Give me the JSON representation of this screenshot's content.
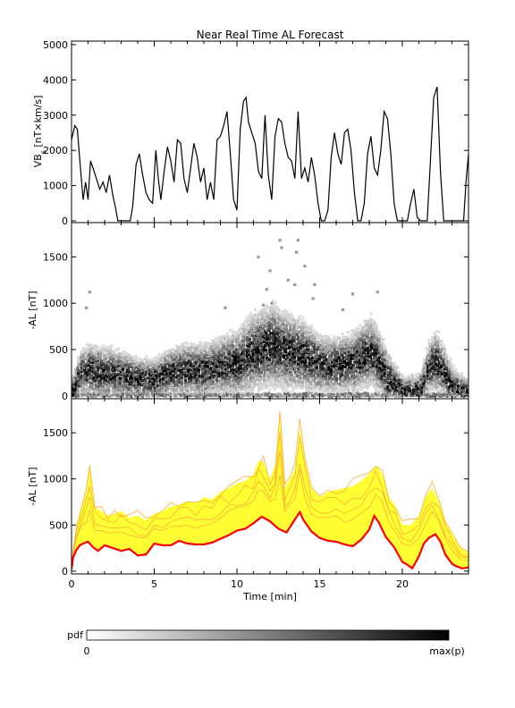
{
  "title": "Near Real Time AL Forecast",
  "x_axis": {
    "label": "Time [min]",
    "ticks": [
      0,
      5,
      10,
      15,
      20
    ],
    "range": [
      0,
      24
    ]
  },
  "colorbar": {
    "label": "pdf",
    "min_label": "0",
    "max_label": "max(p)"
  },
  "colors": {
    "vbs_line": "#000000",
    "forecast_median": "#ff0000",
    "forecast_band_fill": "#ffff33",
    "forecast_band_edge": "#ffaa33"
  },
  "chart_data": [
    {
      "type": "line",
      "panel": "top",
      "ylabel_main": "VB",
      "ylabel_sub": "s",
      "ylabel_unit": " [nT×km/s]",
      "ylim": [
        -50,
        5100
      ],
      "yticks": [
        0,
        1000,
        2000,
        3000,
        4000,
        5000
      ],
      "xlim": [
        0,
        24
      ],
      "series": [
        {
          "x": [
            0,
            0.2,
            0.35,
            0.5,
            0.7,
            0.85,
            1.0,
            1.15,
            1.3,
            1.5,
            1.7,
            1.9,
            2.1,
            2.3,
            2.5,
            2.65,
            2.8,
            3.0,
            3.2,
            3.4,
            3.55,
            3.7,
            3.9,
            4.1,
            4.3,
            4.5,
            4.7,
            4.9,
            5.1,
            5.25,
            5.4,
            5.6,
            5.8,
            6.0,
            6.2,
            6.4,
            6.6,
            6.8,
            7.0,
            7.2,
            7.4,
            7.6,
            7.8,
            8.0,
            8.2,
            8.4,
            8.6,
            8.8,
            9.0,
            9.2,
            9.4,
            9.6,
            9.8,
            10.0,
            10.2,
            10.4,
            10.55,
            10.7,
            10.9,
            11.1,
            11.3,
            11.5,
            11.7,
            11.9,
            12.1,
            12.3,
            12.5,
            12.7,
            12.9,
            13.1,
            13.3,
            13.5,
            13.7,
            13.9,
            14.1,
            14.3,
            14.5,
            14.7,
            14.9,
            15.1,
            15.3,
            15.5,
            15.7,
            15.9,
            16.1,
            16.3,
            16.5,
            16.7,
            16.9,
            17.1,
            17.3,
            17.5,
            17.7,
            17.9,
            18.1,
            18.3,
            18.5,
            18.7,
            18.9,
            19.1,
            19.3,
            19.5,
            19.7,
            19.9,
            20.1,
            20.3,
            20.5,
            20.7,
            20.9,
            21.1,
            21.3,
            21.5,
            21.7,
            21.9,
            22.1,
            22.3,
            22.5,
            22.7,
            22.9,
            23.1,
            23.3,
            23.5,
            23.7,
            23.85,
            24.0
          ],
          "y": [
            2300,
            2700,
            2600,
            1700,
            600,
            1100,
            600,
            1700,
            1500,
            1200,
            900,
            1100,
            800,
            1300,
            700,
            400,
            0,
            0,
            0,
            0,
            0,
            400,
            1600,
            1900,
            1300,
            800,
            600,
            500,
            2000,
            1200,
            600,
            1400,
            2100,
            1700,
            1100,
            2300,
            2200,
            1200,
            800,
            1500,
            2200,
            1800,
            1100,
            1500,
            600,
            1100,
            600,
            2300,
            2400,
            2700,
            3100,
            1900,
            600,
            300,
            2600,
            3400,
            3500,
            2800,
            2500,
            2200,
            1400,
            1200,
            3000,
            1300,
            600,
            2400,
            2900,
            2800,
            2200,
            1800,
            1700,
            1200,
            3100,
            1200,
            1500,
            1100,
            1800,
            1300,
            500,
            0,
            0,
            300,
            1800,
            2500,
            1900,
            1600,
            2500,
            2600,
            2000,
            800,
            0,
            0,
            500,
            1900,
            2400,
            1500,
            1300,
            2000,
            3100,
            2900,
            1900,
            500,
            0,
            0,
            0,
            0,
            500,
            900,
            100,
            0,
            0,
            0,
            1700,
            3500,
            3800,
            1400,
            0,
            0,
            0,
            0,
            0,
            0,
            0,
            1100,
            1900
          ]
        }
      ]
    },
    {
      "type": "heatmap",
      "panel": "middle",
      "ylabel": "-AL [nT]",
      "ylim": [
        -30,
        1870
      ],
      "yticks": [
        0,
        500,
        1000,
        1500
      ],
      "xlim": [
        0,
        24
      ],
      "description_of_values": "probability density of -AL vs time (grayscale, 0 to max(p))",
      "center_line": {
        "x": [
          0,
          0.5,
          1,
          1.5,
          2,
          3,
          4,
          5,
          6,
          7,
          8,
          9,
          10,
          11,
          12,
          13,
          14,
          15,
          16,
          17,
          18,
          18.5,
          19,
          20,
          21,
          21.5,
          22,
          22.5,
          23,
          24
        ],
        "y": [
          50,
          250,
          280,
          250,
          240,
          230,
          190,
          180,
          260,
          280,
          280,
          330,
          360,
          480,
          550,
          480,
          440,
          340,
          330,
          370,
          480,
          380,
          200,
          50,
          50,
          300,
          370,
          250,
          100,
          60
        ]
      },
      "spread": {
        "x": [
          0,
          1,
          2,
          3,
          4,
          5,
          6,
          7,
          8,
          9,
          10,
          11,
          12,
          13,
          14,
          15,
          16,
          17,
          18,
          19,
          20,
          21,
          22,
          23,
          24
        ],
        "y": [
          150,
          220,
          230,
          200,
          180,
          180,
          210,
          230,
          230,
          250,
          280,
          340,
          360,
          330,
          300,
          250,
          240,
          260,
          300,
          230,
          120,
          150,
          260,
          160,
          80
        ]
      },
      "outliers": [
        {
          "x": 11.3,
          "y": 1500
        },
        {
          "x": 12.6,
          "y": 1680
        },
        {
          "x": 12.7,
          "y": 1600
        },
        {
          "x": 13.7,
          "y": 1680
        },
        {
          "x": 13.6,
          "y": 1550
        },
        {
          "x": 14.1,
          "y": 1400
        },
        {
          "x": 12.0,
          "y": 1350
        },
        {
          "x": 13.1,
          "y": 1250
        },
        {
          "x": 1.1,
          "y": 1120
        },
        {
          "x": 11.8,
          "y": 1150
        },
        {
          "x": 13.5,
          "y": 1200
        },
        {
          "x": 14.7,
          "y": 1200
        },
        {
          "x": 17.0,
          "y": 1100
        },
        {
          "x": 18.5,
          "y": 1120
        },
        {
          "x": 11.6,
          "y": 980
        },
        {
          "x": 12.1,
          "y": 1000
        },
        {
          "x": 14.6,
          "y": 1050
        },
        {
          "x": 9.3,
          "y": 950
        },
        {
          "x": 0.9,
          "y": 950
        },
        {
          "x": 16.4,
          "y": 930
        }
      ]
    },
    {
      "type": "area",
      "panel": "bottom",
      "ylabel": "-AL [nT]",
      "ylim": [
        -30,
        1870
      ],
      "yticks": [
        0,
        500,
        1000,
        1500
      ],
      "xlim": [
        0,
        24
      ],
      "median": {
        "x": [
          0,
          0.1,
          0.3,
          0.5,
          0.7,
          1.0,
          1.3,
          1.6,
          2.0,
          2.5,
          3.0,
          3.5,
          4.0,
          4.5,
          5.0,
          5.5,
          6.0,
          6.5,
          7.0,
          7.5,
          8.0,
          8.5,
          9.0,
          9.5,
          10.0,
          10.5,
          11.0,
          11.5,
          12.0,
          12.5,
          13.0,
          13.5,
          13.8,
          14.0,
          14.5,
          15.0,
          15.5,
          16.0,
          16.5,
          17.0,
          17.5,
          18.0,
          18.3,
          18.6,
          19.0,
          19.5,
          20.0,
          20.3,
          20.6,
          21.0,
          21.3,
          21.6,
          22.0,
          22.3,
          22.6,
          23.0,
          23.3,
          23.6,
          24.0
        ],
        "y": [
          20,
          150,
          230,
          280,
          300,
          320,
          260,
          220,
          280,
          250,
          220,
          240,
          170,
          180,
          300,
          280,
          280,
          330,
          300,
          290,
          290,
          310,
          350,
          390,
          440,
          460,
          520,
          590,
          540,
          460,
          420,
          560,
          640,
          560,
          430,
          360,
          330,
          320,
          290,
          270,
          340,
          450,
          600,
          520,
          370,
          260,
          100,
          70,
          30,
          160,
          300,
          360,
          400,
          320,
          180,
          80,
          50,
          30,
          40
        ]
      },
      "upper": {
        "x": [
          0,
          0.3,
          0.6,
          0.9,
          1.1,
          1.4,
          1.8,
          2.2,
          2.6,
          3.0,
          3.5,
          4.0,
          4.5,
          5.0,
          5.5,
          6.0,
          6.5,
          7.0,
          7.5,
          8.0,
          8.5,
          9.0,
          9.5,
          10.0,
          10.5,
          11.0,
          11.3,
          11.6,
          12.0,
          12.3,
          12.6,
          12.9,
          13.2,
          13.5,
          13.8,
          14.1,
          14.5,
          15.0,
          15.5,
          16.0,
          16.5,
          17.0,
          17.5,
          18.0,
          18.4,
          18.8,
          19.2,
          19.6,
          20.0,
          20.5,
          21.0,
          21.4,
          21.8,
          22.2,
          22.6,
          23.0,
          23.5,
          24.0
        ],
        "y": [
          100,
          500,
          700,
          850,
          1150,
          700,
          650,
          600,
          620,
          650,
          580,
          600,
          550,
          620,
          650,
          700,
          720,
          760,
          740,
          800,
          780,
          860,
          900,
          950,
          980,
          1050,
          1200,
          1180,
          1000,
          1150,
          1700,
          900,
          1000,
          1100,
          1550,
          1200,
          900,
          800,
          860,
          880,
          900,
          920,
          980,
          1050,
          1150,
          1050,
          800,
          700,
          500,
          500,
          600,
          800,
          900,
          750,
          550,
          400,
          250,
          200
        ]
      }
    }
  ]
}
